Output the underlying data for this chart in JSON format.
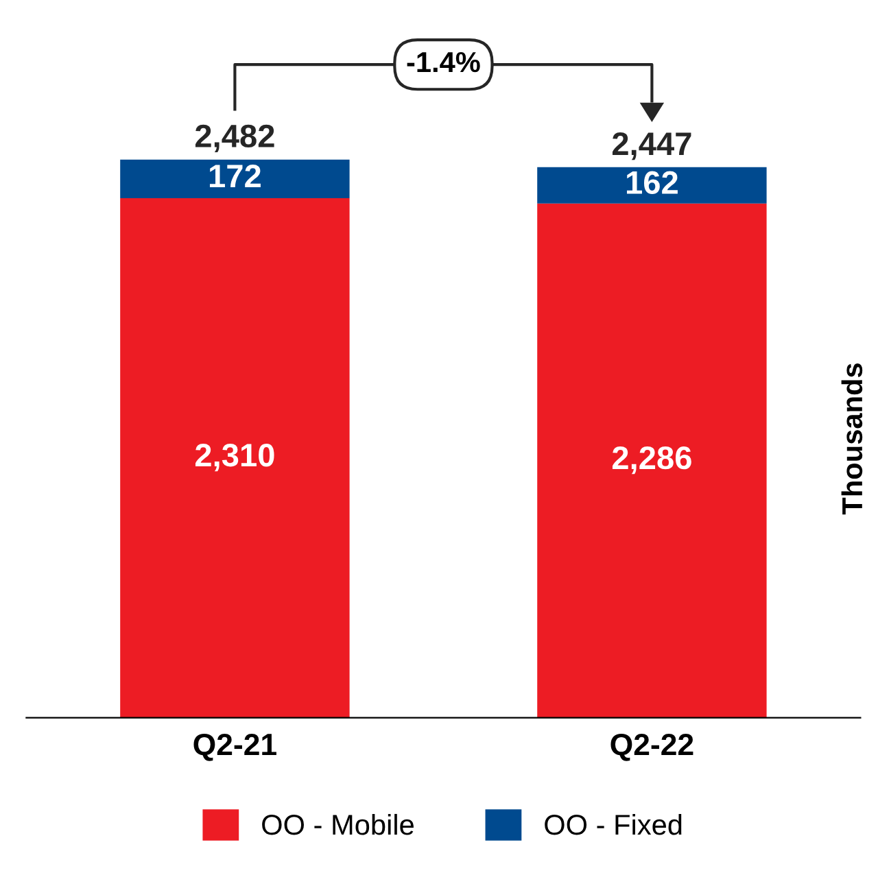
{
  "chart_data": {
    "type": "bar",
    "stacked": true,
    "ylabel": "Thousands",
    "categories": [
      "Q2-21",
      "Q2-22"
    ],
    "series": [
      {
        "name": "OO - Mobile",
        "color": "#ed1c24",
        "values": [
          2310,
          2286
        ],
        "value_labels": [
          "2,310",
          "2,286"
        ]
      },
      {
        "name": "OO - Fixed",
        "color": "#004a8f",
        "values": [
          172,
          162
        ],
        "value_labels": [
          "172",
          "162"
        ]
      }
    ],
    "totals": [
      "2,482",
      "2,447"
    ],
    "annotations": [
      "-1.4%"
    ],
    "legend": "bottom",
    "grid": false
  }
}
